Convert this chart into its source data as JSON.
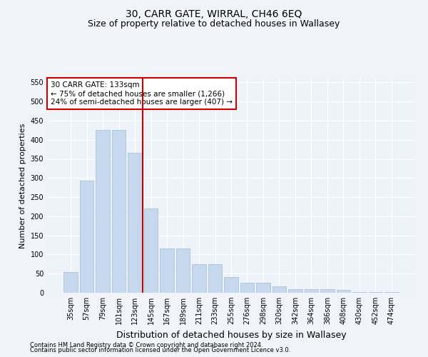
{
  "title": "30, CARR GATE, WIRRAL, CH46 6EQ",
  "subtitle": "Size of property relative to detached houses in Wallasey",
  "xlabel": "Distribution of detached houses by size in Wallasey",
  "ylabel": "Number of detached properties",
  "categories": [
    "35sqm",
    "57sqm",
    "79sqm",
    "101sqm",
    "123sqm",
    "145sqm",
    "167sqm",
    "189sqm",
    "211sqm",
    "233sqm",
    "255sqm",
    "276sqm",
    "298sqm",
    "320sqm",
    "342sqm",
    "364sqm",
    "386sqm",
    "408sqm",
    "430sqm",
    "452sqm",
    "474sqm"
  ],
  "values": [
    55,
    293,
    425,
    425,
    365,
    220,
    115,
    115,
    75,
    75,
    42,
    27,
    27,
    17,
    9,
    9,
    9,
    7,
    2,
    2,
    2
  ],
  "bar_color": "#c5d8ed",
  "bar_edge_color": "#a0bcd8",
  "vline_x": 4.5,
  "vline_color": "#cc0000",
  "annotation_text": "30 CARR GATE: 133sqm\n← 75% of detached houses are smaller (1,266)\n24% of semi-detached houses are larger (407) →",
  "annotation_box_color": "#ffffff",
  "annotation_box_edge": "#cc0000",
  "ylim": [
    0,
    560
  ],
  "yticks": [
    0,
    50,
    100,
    150,
    200,
    250,
    300,
    350,
    400,
    450,
    500,
    550
  ],
  "bg_color": "#eef3f9",
  "grid_color": "#ffffff",
  "fig_bg_color": "#f0f4f8",
  "footer1": "Contains HM Land Registry data © Crown copyright and database right 2024.",
  "footer2": "Contains public sector information licensed under the Open Government Licence v3.0.",
  "title_fontsize": 10,
  "subtitle_fontsize": 9,
  "ylabel_fontsize": 8,
  "xlabel_fontsize": 9,
  "tick_fontsize": 7,
  "footer_fontsize": 6,
  "annot_fontsize": 7.5
}
